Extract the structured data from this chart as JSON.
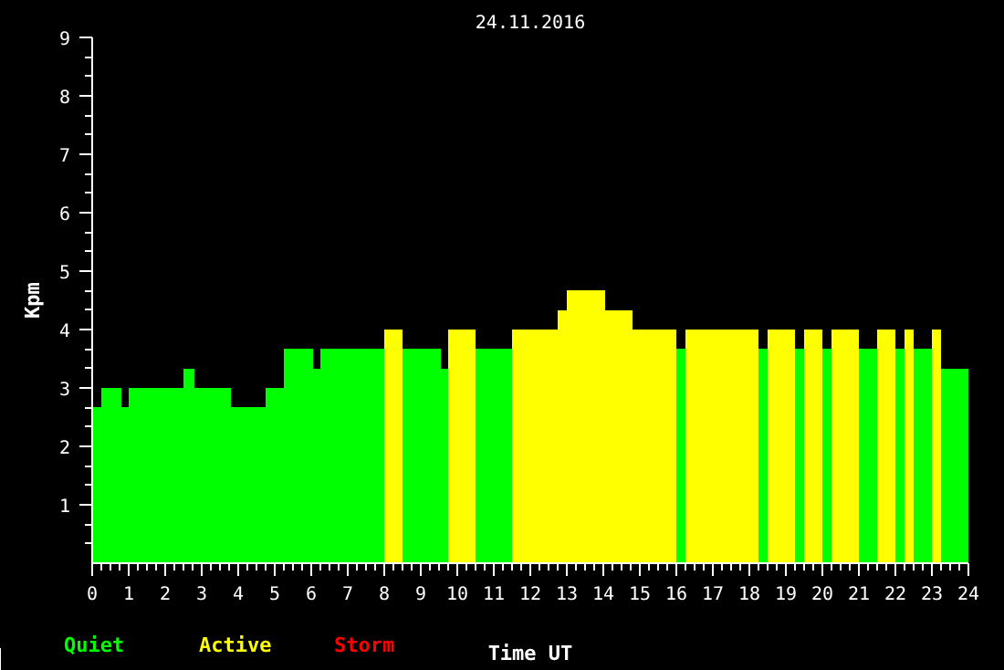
{
  "chart_data": {
    "type": "bar",
    "title": "24.11.2016",
    "xlabel": "Time UT",
    "ylabel": "Kpm",
    "x": [
      0.125,
      0.525,
      0.9,
      1.75,
      2.65,
      3.3,
      4.275,
      5.0,
      5.65,
      6.15,
      7.125,
      8.25,
      9.025,
      9.65,
      10.125,
      11.0,
      12.125,
      12.875,
      13.525,
      14.425,
      15.4,
      16.125,
      17.25,
      18.375,
      18.875,
      19.375,
      19.75,
      20.125,
      20.625,
      21.25,
      21.75,
      22.125,
      22.375,
      22.75,
      23.125,
      23.625
    ],
    "series": [
      {
        "name": "Quiet",
        "color": "#00ff00",
        "values": [
          2.67,
          3,
          2.67,
          3,
          3.33,
          3,
          2.67,
          3,
          3.67,
          3.33,
          3.67,
          null,
          3.67,
          3.33,
          null,
          3.67,
          null,
          null,
          null,
          null,
          null,
          3.67,
          null,
          3.67,
          null,
          3.67,
          null,
          3.67,
          null,
          3.67,
          null,
          3.67,
          null,
          3.67,
          null,
          3.33
        ]
      },
      {
        "name": "Active",
        "color": "#ffff00",
        "values": [
          null,
          null,
          null,
          null,
          null,
          null,
          null,
          null,
          null,
          null,
          null,
          4,
          null,
          null,
          4,
          null,
          4,
          4.33,
          4.67,
          4.33,
          4,
          null,
          4,
          null,
          4,
          null,
          4,
          null,
          4,
          null,
          4,
          null,
          4,
          null,
          4,
          null
        ]
      },
      {
        "name": "Storm",
        "color": "#ff0000",
        "values": [
          null,
          null,
          null,
          null,
          null,
          null,
          null,
          null,
          null,
          null,
          null,
          null,
          null,
          null,
          null,
          null,
          null,
          null,
          null,
          null,
          null,
          null,
          null,
          null,
          null,
          null,
          null,
          null,
          null,
          null,
          null,
          null,
          null,
          null,
          null,
          null
        ]
      }
    ],
    "xlim": [
      0,
      24
    ],
    "ylim": [
      0,
      9
    ],
    "xticks": [
      0,
      1,
      2,
      3,
      4,
      5,
      6,
      7,
      8,
      9,
      10,
      11,
      12,
      13,
      14,
      15,
      16,
      17,
      18,
      19,
      20,
      21,
      22,
      23,
      24
    ],
    "yticks": [
      1,
      2,
      3,
      4,
      5,
      6,
      7,
      8,
      9
    ],
    "grid": false
  }
}
